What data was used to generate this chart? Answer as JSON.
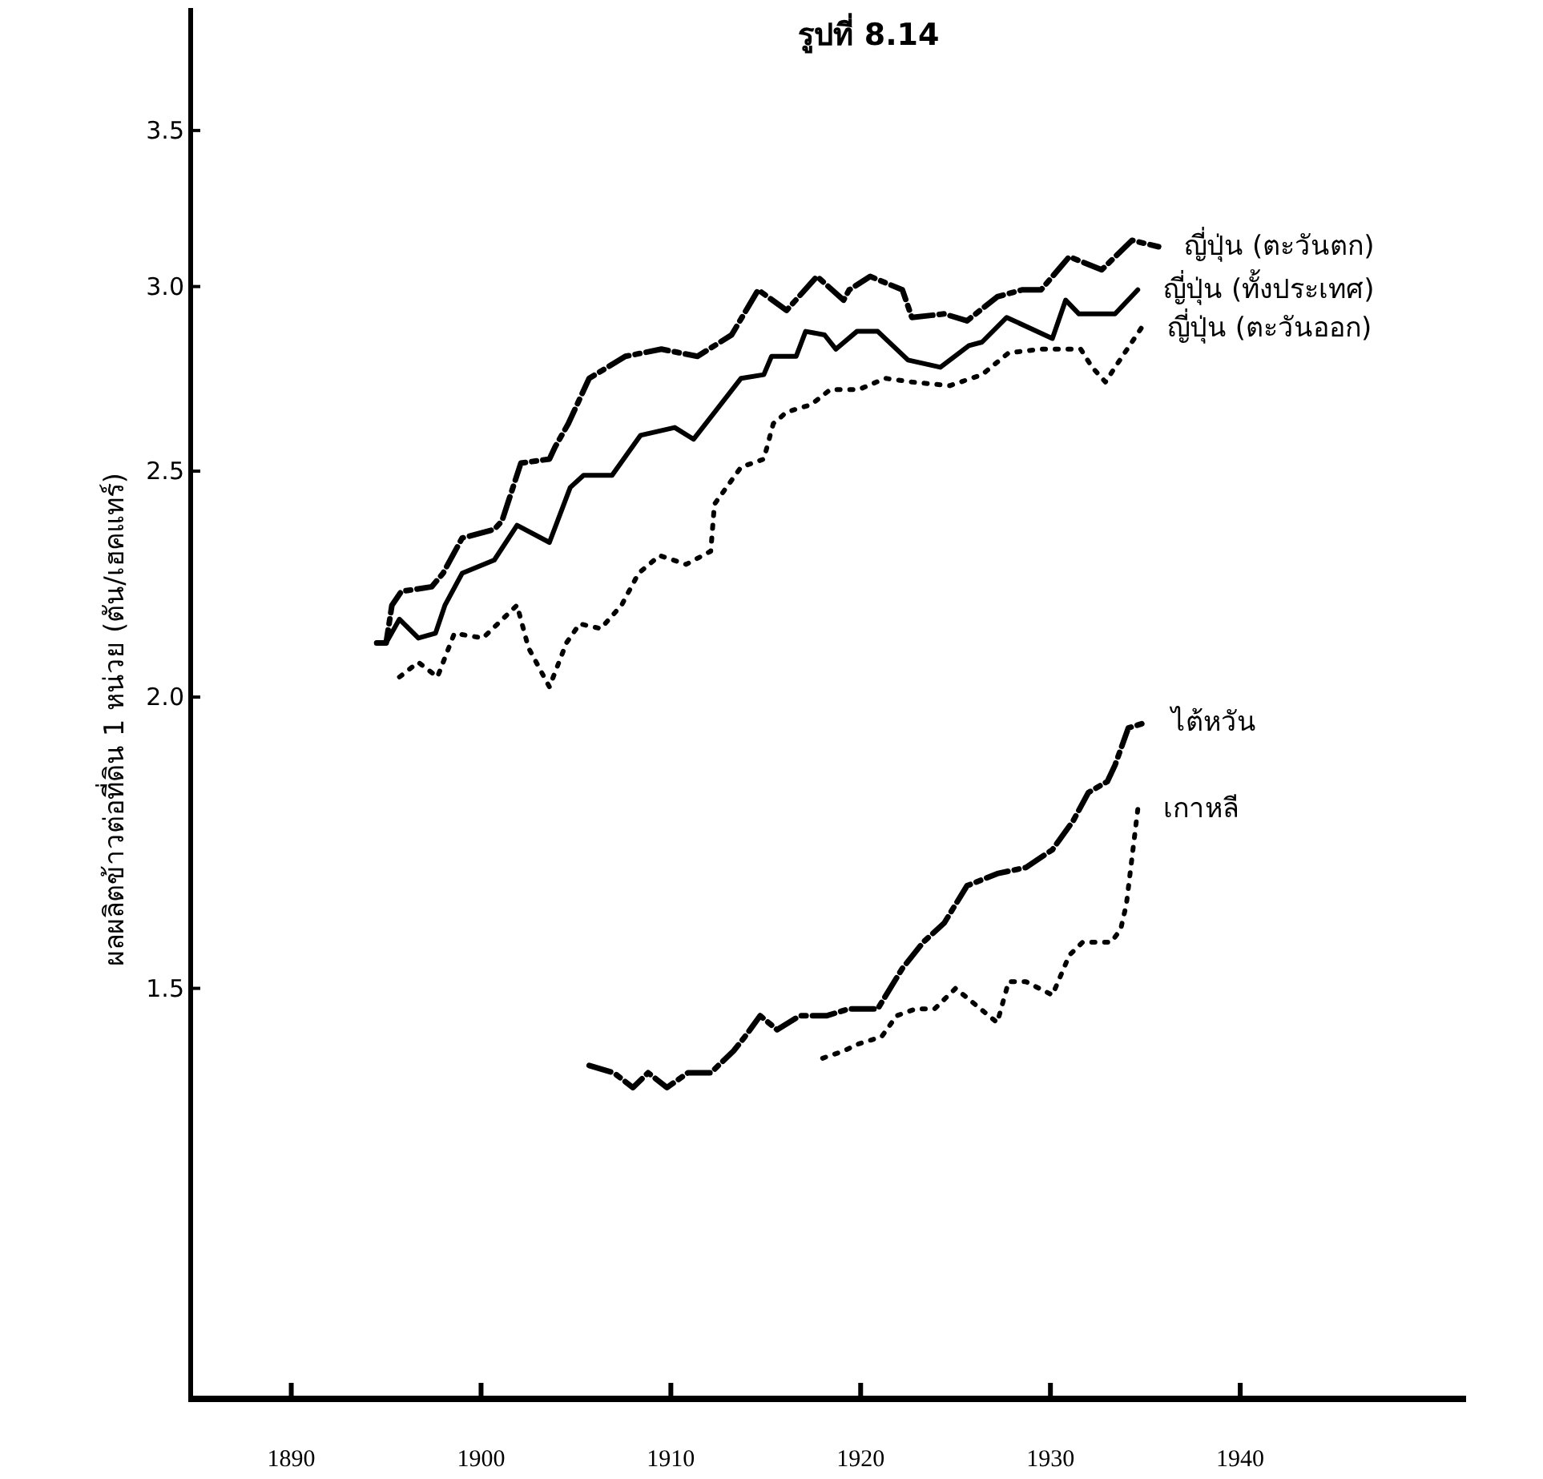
{
  "chart_data": {
    "type": "line",
    "title": "รูปที่ 8.14",
    "ylabel": "ผลผลิตข้าวต่อที่ดิน 1 หน่วย (ตัน/เฮคแทร์)",
    "log": "y",
    "xlim": [
      1884.7,
      1951.9
    ],
    "ylim": [
      1.0,
      3.95
    ],
    "xticks": [
      1890,
      1900,
      1910,
      1920,
      1930,
      1940
    ],
    "yticks": [
      {
        "value": 1.5,
        "label": "1.5"
      },
      {
        "value": 2.0,
        "label": "2.0"
      },
      {
        "value": 2.5,
        "label": "2.5"
      },
      {
        "value": 3.0,
        "label": "3.0"
      },
      {
        "value": 3.5,
        "label": "3.5"
      }
    ],
    "grid": false,
    "legend": false,
    "marker": "none",
    "series": [
      {
        "name": "ญี่ปุ่น (ตะวันตก)",
        "color": "#000000",
        "line_style": "dashed",
        "x": [
          1894.5,
          1895.0,
          1895.3,
          1895.8,
          1897.4,
          1898.0,
          1899.0,
          1900.7,
          1901.1,
          1902.1,
          1903.6,
          1903.9,
          1904.6,
          1905.7,
          1907.6,
          1909.5,
          1911.4,
          1913.2,
          1914.6,
          1916.1,
          1917.7,
          1919.1,
          1919.4,
          1920.5,
          1922.2,
          1922.7,
          1924.4,
          1925.6,
          1927.2,
          1928.5,
          1929.5,
          1931.0,
          1932.7,
          1934.3,
          1935.7
        ],
        "values": [
          2.11,
          2.11,
          2.19,
          2.22,
          2.23,
          2.26,
          2.34,
          2.36,
          2.38,
          2.52,
          2.53,
          2.56,
          2.62,
          2.74,
          2.8,
          2.82,
          2.8,
          2.86,
          2.99,
          2.93,
          3.03,
          2.96,
          2.99,
          3.03,
          2.99,
          2.91,
          2.92,
          2.9,
          2.97,
          2.99,
          2.99,
          3.09,
          3.05,
          3.14,
          3.12
        ]
      },
      {
        "name": "ญี่ปุ่น (ทั้งประเทศ)",
        "color": "#000000",
        "line_style": "solid",
        "x": [
          1894.5,
          1895.0,
          1895.7,
          1896.7,
          1897.6,
          1898.1,
          1899.0,
          1900.7,
          1901.9,
          1903.6,
          1904.7,
          1905.4,
          1906.9,
          1908.4,
          1910.2,
          1911.2,
          1913.7,
          1914.9,
          1915.3,
          1916.6,
          1917.1,
          1918.1,
          1918.7,
          1919.8,
          1920.9,
          1922.5,
          1924.2,
          1925.7,
          1926.4,
          1927.7,
          1930.1,
          1930.8,
          1931.5,
          1933.4,
          1934.6
        ],
        "values": [
          2.11,
          2.11,
          2.16,
          2.12,
          2.13,
          2.19,
          2.26,
          2.29,
          2.37,
          2.33,
          2.46,
          2.49,
          2.49,
          2.59,
          2.61,
          2.58,
          2.74,
          2.75,
          2.8,
          2.8,
          2.87,
          2.86,
          2.82,
          2.87,
          2.87,
          2.79,
          2.77,
          2.83,
          2.84,
          2.91,
          2.85,
          2.96,
          2.92,
          2.92,
          2.99
        ]
      },
      {
        "name": "ญี่ปุ่น (ตะวันออก)",
        "color": "#000000",
        "line_style": "dotted",
        "x": [
          1895.7,
          1896.7,
          1897.7,
          1898.6,
          1900.1,
          1901.9,
          1902.5,
          1903.6,
          1904.5,
          1905.2,
          1906.3,
          1907.4,
          1908.3,
          1909.4,
          1910.8,
          1912.1,
          1912.3,
          1913.7,
          1914.9,
          1915.4,
          1916.1,
          1917.4,
          1918.4,
          1919.9,
          1921.3,
          1922.7,
          1924.7,
          1926.4,
          1927.8,
          1929.5,
          1930.3,
          1931.6,
          1932.2,
          1932.9,
          1933.4,
          1934.8
        ],
        "values": [
          2.04,
          2.07,
          2.04,
          2.13,
          2.12,
          2.19,
          2.1,
          2.02,
          2.11,
          2.15,
          2.14,
          2.19,
          2.26,
          2.3,
          2.28,
          2.31,
          2.42,
          2.51,
          2.53,
          2.62,
          2.65,
          2.67,
          2.71,
          2.71,
          2.74,
          2.73,
          2.72,
          2.75,
          2.81,
          2.82,
          2.82,
          2.82,
          2.77,
          2.73,
          2.77,
          2.88
        ]
      },
      {
        "name": "ไต้หวัน",
        "color": "#000000",
        "line_style": "dashed",
        "x": [
          1905.7,
          1907.0,
          1908.0,
          1908.8,
          1909.8,
          1910.9,
          1912.1,
          1913.3,
          1913.9,
          1914.7,
          1915.6,
          1916.8,
          1918.2,
          1919.4,
          1920.9,
          1922.2,
          1923.3,
          1924.4,
          1925.6,
          1927.2,
          1928.7,
          1930.1,
          1931.2,
          1932.0,
          1933.0,
          1933.4,
          1934.1,
          1935.0
        ],
        "values": [
          1.39,
          1.38,
          1.36,
          1.38,
          1.36,
          1.38,
          1.38,
          1.41,
          1.43,
          1.46,
          1.44,
          1.46,
          1.46,
          1.47,
          1.47,
          1.53,
          1.57,
          1.6,
          1.66,
          1.68,
          1.69,
          1.72,
          1.77,
          1.82,
          1.84,
          1.87,
          1.94,
          1.95
        ]
      },
      {
        "name": "เกาหลี",
        "color": "#000000",
        "line_style": "dotted",
        "x": [
          1918.0,
          1919.1,
          1919.9,
          1921.1,
          1921.9,
          1922.9,
          1923.9,
          1925.0,
          1927.2,
          1927.8,
          1928.7,
          1930.1,
          1931.0,
          1931.7,
          1933.2,
          1933.7,
          1934.0,
          1934.6
        ],
        "values": [
          1.4,
          1.41,
          1.42,
          1.43,
          1.46,
          1.47,
          1.47,
          1.5,
          1.45,
          1.51,
          1.51,
          1.49,
          1.55,
          1.57,
          1.57,
          1.59,
          1.63,
          1.79
        ]
      }
    ]
  }
}
